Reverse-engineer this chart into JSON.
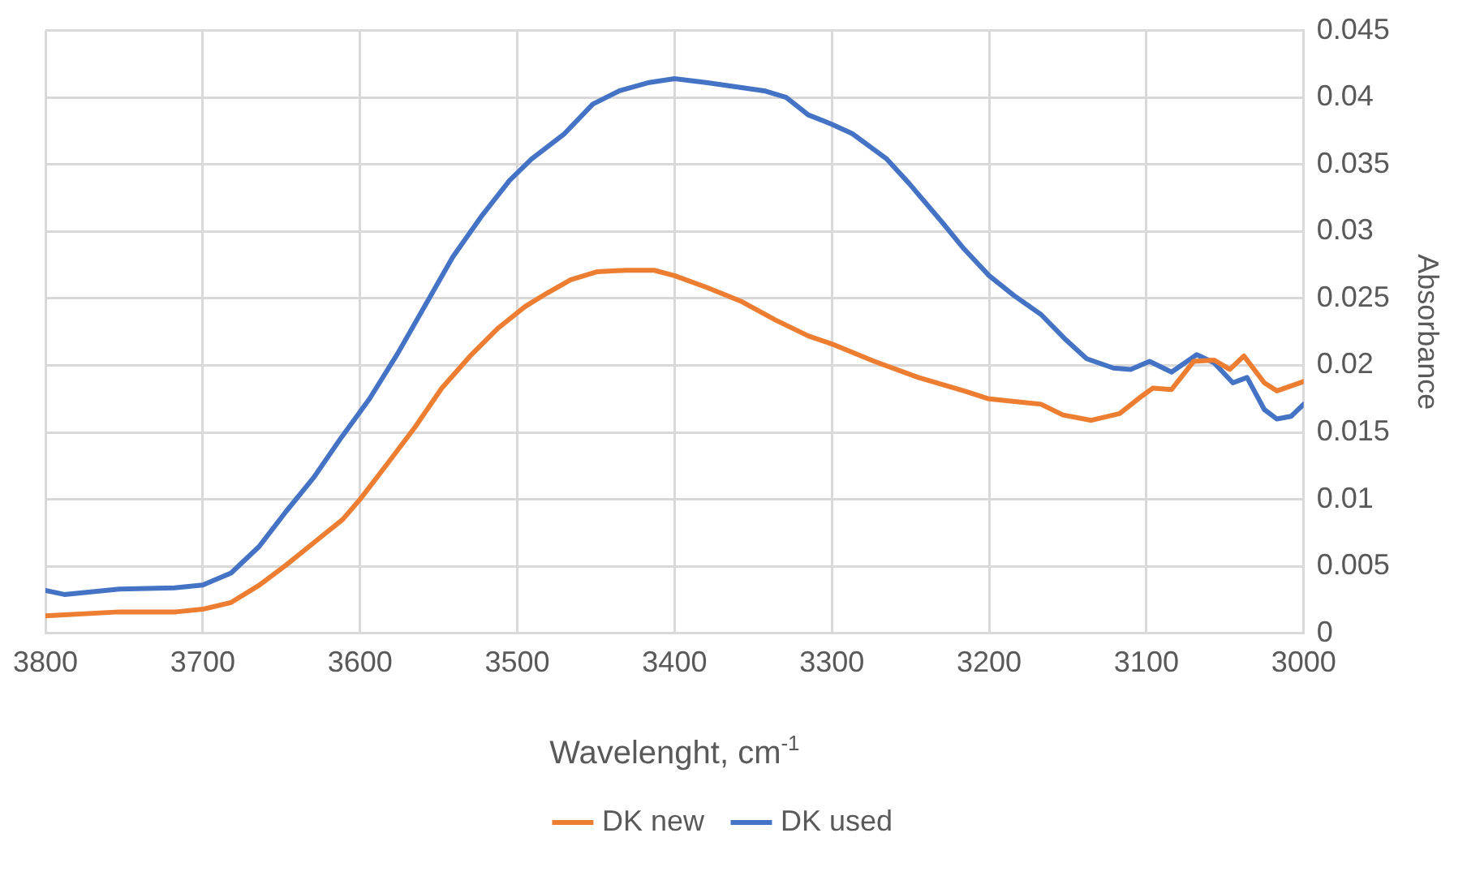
{
  "chart_data": {
    "type": "line",
    "xlabel": "Wavelenght, cm$^{-1}$",
    "ylabel": "Absorbance",
    "xlim": [
      3800,
      3000
    ],
    "xticks": [
      3800,
      3700,
      3600,
      3500,
      3400,
      3300,
      3200,
      3100,
      3000
    ],
    "ylim": [
      0,
      0.045
    ],
    "yticks": [
      0,
      0.005,
      0.01,
      0.015,
      0.02,
      0.025,
      0.03,
      0.035,
      0.04,
      0.045
    ],
    "grid": true,
    "legend": "bottom",
    "marker": "none",
    "line_style": "solid",
    "series": [
      {
        "name": "DK new",
        "color": "#ed7d31",
        "x": [
          3800,
          3753,
          3717,
          3700,
          3682,
          3664,
          3647,
          3629,
          3611,
          3600,
          3583,
          3565,
          3548,
          3530,
          3512,
          3495,
          3481,
          3466,
          3449,
          3431,
          3413,
          3400,
          3379,
          3358,
          3336,
          3315,
          3300,
          3273,
          3245,
          3216,
          3200,
          3167,
          3153,
          3135,
          3117,
          3103,
          3096,
          3084,
          3070,
          3057,
          3047,
          3038,
          3025,
          3017,
          3000
        ],
        "values": [
          0.0013,
          0.0016,
          0.0016,
          0.0018,
          0.0023,
          0.0036,
          0.0051,
          0.0068,
          0.0085,
          0.01,
          0.0126,
          0.0154,
          0.0183,
          0.0207,
          0.0228,
          0.0244,
          0.0254,
          0.0264,
          0.027,
          0.0271,
          0.0271,
          0.0267,
          0.0258,
          0.0248,
          0.0234,
          0.0222,
          0.0216,
          0.0203,
          0.0191,
          0.0181,
          0.0175,
          0.0171,
          0.0163,
          0.0159,
          0.0164,
          0.0177,
          0.0183,
          0.0182,
          0.0203,
          0.0204,
          0.0197,
          0.0207,
          0.0187,
          0.0181,
          0.0188
        ]
      },
      {
        "name": "DK used",
        "color": "#4472c4",
        "x": [
          3800,
          3788,
          3753,
          3718,
          3700,
          3682,
          3664,
          3647,
          3629,
          3612,
          3594,
          3576,
          3558,
          3541,
          3523,
          3505,
          3491,
          3470,
          3452,
          3435,
          3417,
          3400,
          3379,
          3343,
          3329,
          3315,
          3300,
          3287,
          3265,
          3251,
          3230,
          3216,
          3200,
          3184,
          3167,
          3152,
          3138,
          3121,
          3110,
          3098,
          3084,
          3068,
          3057,
          3045,
          3036,
          3025,
          3017,
          3008,
          3000
        ],
        "values": [
          0.0032,
          0.0029,
          0.0033,
          0.0034,
          0.0036,
          0.0045,
          0.0065,
          0.0091,
          0.0117,
          0.0146,
          0.0175,
          0.0209,
          0.0246,
          0.0281,
          0.0311,
          0.0338,
          0.0354,
          0.0373,
          0.0395,
          0.0405,
          0.0411,
          0.0414,
          0.0411,
          0.0405,
          0.04,
          0.0387,
          0.038,
          0.0373,
          0.0354,
          0.0336,
          0.0307,
          0.0287,
          0.0267,
          0.0252,
          0.0238,
          0.022,
          0.0205,
          0.0198,
          0.0197,
          0.0203,
          0.0195,
          0.0208,
          0.0202,
          0.0187,
          0.0191,
          0.0167,
          0.016,
          0.0162,
          0.0171
        ]
      }
    ]
  }
}
